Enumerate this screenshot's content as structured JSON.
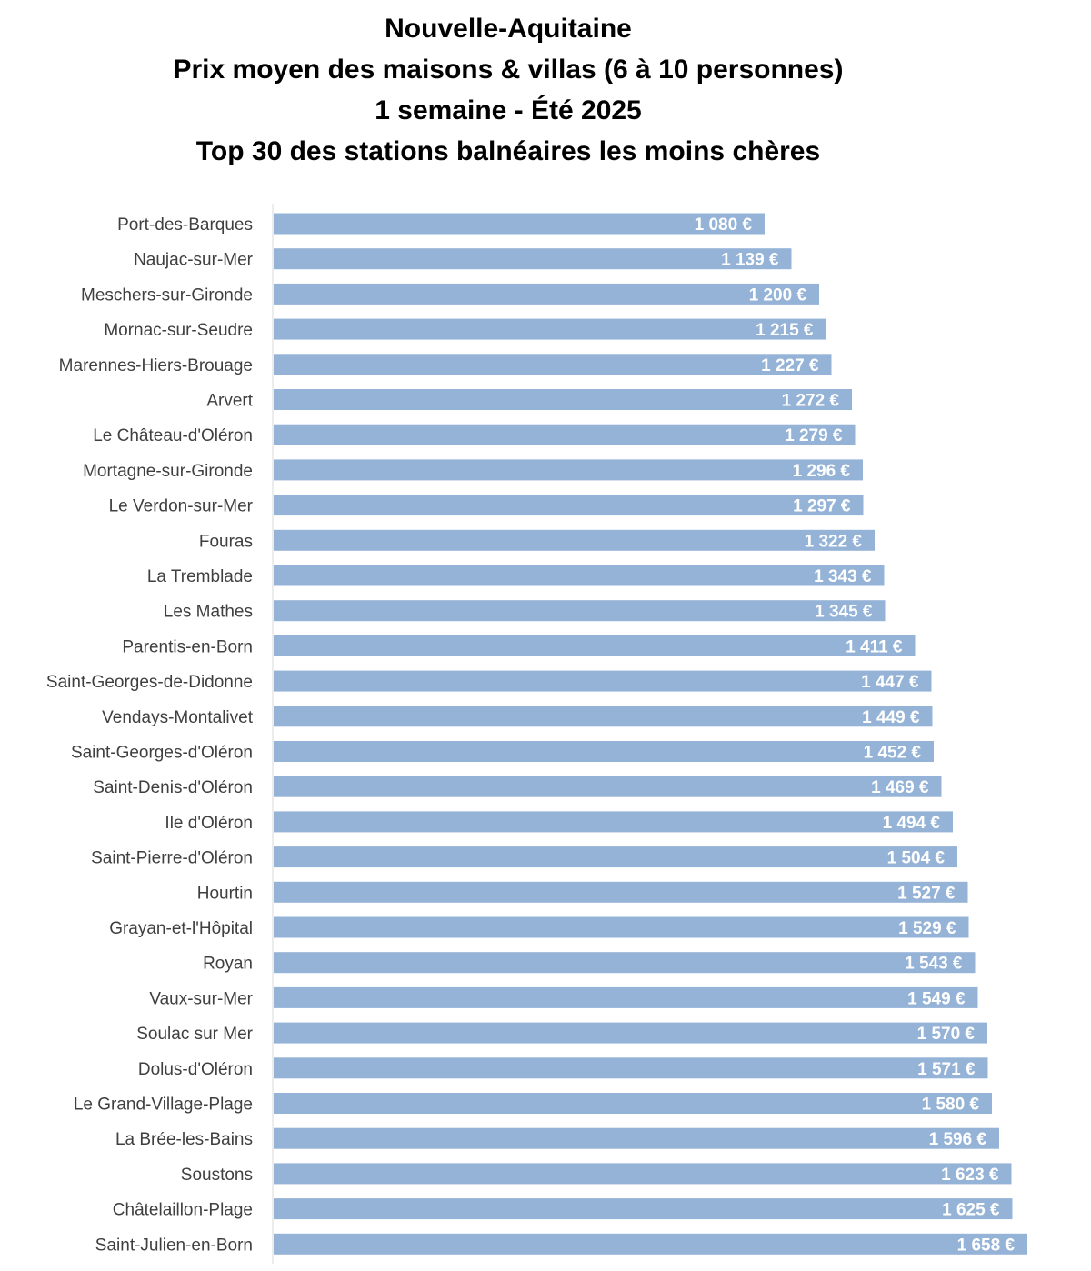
{
  "chart_data": {
    "type": "bar",
    "orientation": "horizontal",
    "title_lines": [
      "Nouvelle-Aquitaine",
      "Prix moyen des maisons & villas (6 à 10 personnes)",
      "1 semaine - Été 2025",
      "Top 30 des stations balnéaires les moins chères"
    ],
    "categories": [
      "Port-des-Barques",
      "Naujac-sur-Mer",
      "Meschers-sur-Gironde",
      "Mornac-sur-Seudre",
      "Marennes-Hiers-Brouage",
      "Arvert",
      "Le Château-d'Oléron",
      "Mortagne-sur-Gironde",
      "Le Verdon-sur-Mer",
      "Fouras",
      "La Tremblade",
      "Les Mathes",
      "Parentis-en-Born",
      "Saint-Georges-de-Didonne",
      "Vendays-Montalivet",
      "Saint-Georges-d'Oléron",
      "Saint-Denis-d'Oléron",
      "Ile d'Oléron",
      "Saint-Pierre-d'Oléron",
      "Hourtin",
      "Grayan-et-l'Hôpital",
      "Royan",
      "Vaux-sur-Mer",
      "Soulac sur Mer",
      "Dolus-d'Oléron",
      "Le Grand-Village-Plage",
      "La Brée-les-Bains",
      "Soustons",
      "Châtelaillon-Plage",
      "Saint-Julien-en-Born"
    ],
    "values": [
      1080,
      1139,
      1200,
      1215,
      1227,
      1272,
      1279,
      1296,
      1297,
      1322,
      1343,
      1345,
      1411,
      1447,
      1449,
      1452,
      1469,
      1494,
      1504,
      1527,
      1529,
      1543,
      1549,
      1570,
      1571,
      1580,
      1596,
      1623,
      1625,
      1658
    ],
    "value_labels": [
      "1 080 €",
      "1 139 €",
      "1 200 €",
      "1 215 €",
      "1 227 €",
      "1 272 €",
      "1 279 €",
      "1 296 €",
      "1 297 €",
      "1 322 €",
      "1 343 €",
      "1 345 €",
      "1 411 €",
      "1 447 €",
      "1 449 €",
      "1 452 €",
      "1 469 €",
      "1 494 €",
      "1 504 €",
      "1 527 €",
      "1 529 €",
      "1 543 €",
      "1 549 €",
      "1 570 €",
      "1 571 €",
      "1 580 €",
      "1 596 €",
      "1 623 €",
      "1 625 €",
      "1 658 €"
    ],
    "unit": "€",
    "xlim": [
      0,
      1658
    ],
    "xaxis_visible": false,
    "grid": false,
    "legend": "none",
    "bar_color": "#95b3d7",
    "value_label_color": "#ffffff",
    "category_label_color": "#3f3f3f"
  }
}
